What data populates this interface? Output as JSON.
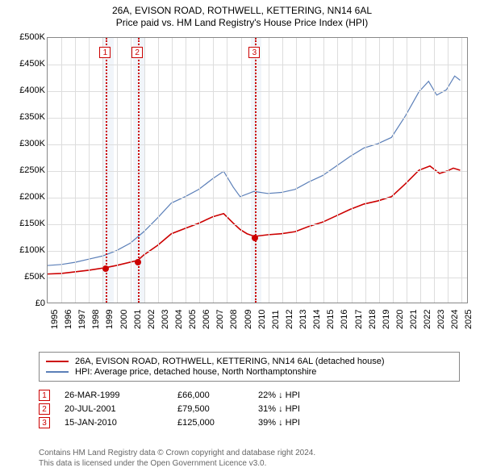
{
  "title_line1": "26A, EVISON ROAD, ROTHWELL, KETTERING, NN14 6AL",
  "title_line2": "Price paid vs. HM Land Registry's House Price Index (HPI)",
  "chart": {
    "type": "line",
    "background_color": "#ffffff",
    "grid_color": "#dddddd",
    "border_color": "#888888",
    "x_min": 1995,
    "x_max": 2025.5,
    "x_ticks": [
      1995,
      1996,
      1997,
      1998,
      1999,
      2000,
      2001,
      2002,
      2003,
      2004,
      2005,
      2006,
      2007,
      2008,
      2009,
      2010,
      2011,
      2012,
      2013,
      2014,
      2015,
      2016,
      2017,
      2018,
      2019,
      2020,
      2021,
      2022,
      2023,
      2024,
      2025
    ],
    "y_min": 0,
    "y_max": 500000,
    "y_tick_step": 50000,
    "y_tick_labels": [
      "£0",
      "£50K",
      "£100K",
      "£150K",
      "£200K",
      "£250K",
      "£300K",
      "£350K",
      "£400K",
      "£450K",
      "£500K"
    ],
    "y_prefix": "£",
    "label_fontsize": 11,
    "shaded_bands": [
      {
        "from": 1999.0,
        "to": 1999.8,
        "color": "#e8eef7"
      },
      {
        "from": 2001.2,
        "to": 2002.0,
        "color": "#e8eef7"
      },
      {
        "from": 2009.7,
        "to": 2010.5,
        "color": "#e8eef7"
      }
    ],
    "markers": [
      {
        "id": "1",
        "x": 1999.23,
        "date": "26-MAR-1999",
        "price": "£66,000",
        "hpi_diff": "22% ↓ HPI",
        "price_val": 66000
      },
      {
        "id": "2",
        "x": 2001.55,
        "date": "20-JUL-2001",
        "price": "£79,500",
        "hpi_diff": "31% ↓ HPI",
        "price_val": 79500
      },
      {
        "id": "3",
        "x": 2010.04,
        "date": "15-JAN-2010",
        "price": "£125,000",
        "hpi_diff": "39% ↓ HPI",
        "price_val": 125000
      }
    ],
    "marker_line_color": "#cc0000",
    "marker_box_border": "#cc0000",
    "marker_box_text_color": "#cc0000",
    "series": [
      {
        "name": "price_paid",
        "label": "26A, EVISON ROAD, ROTHWELL, KETTERING, NN14 6AL (detached house)",
        "color": "#cc0000",
        "line_width": 1.6,
        "data": [
          [
            1995,
            54000
          ],
          [
            1996,
            55000
          ],
          [
            1997,
            58000
          ],
          [
            1998,
            61000
          ],
          [
            1999.23,
            66000
          ],
          [
            2000,
            70000
          ],
          [
            2001.55,
            79500
          ],
          [
            2002,
            90000
          ],
          [
            2003,
            108000
          ],
          [
            2004,
            130000
          ],
          [
            2005,
            140000
          ],
          [
            2006,
            150000
          ],
          [
            2007,
            162000
          ],
          [
            2007.8,
            168000
          ],
          [
            2008.5,
            150000
          ],
          [
            2009,
            138000
          ],
          [
            2009.5,
            130000
          ],
          [
            2010.04,
            125000
          ],
          [
            2011,
            128000
          ],
          [
            2012,
            130000
          ],
          [
            2013,
            134000
          ],
          [
            2014,
            144000
          ],
          [
            2015,
            152000
          ],
          [
            2016,
            164000
          ],
          [
            2017,
            176000
          ],
          [
            2018,
            186000
          ],
          [
            2019,
            192000
          ],
          [
            2020,
            200000
          ],
          [
            2021,
            224000
          ],
          [
            2022,
            250000
          ],
          [
            2022.8,
            258000
          ],
          [
            2023.5,
            244000
          ],
          [
            2024,
            248000
          ],
          [
            2024.5,
            254000
          ],
          [
            2025,
            250000
          ]
        ]
      },
      {
        "name": "hpi",
        "label": "HPI: Average price, detached house, North Northamptonshire",
        "color": "#5b7fb8",
        "line_width": 1.2,
        "data": [
          [
            1995,
            70000
          ],
          [
            1996,
            72000
          ],
          [
            1997,
            76000
          ],
          [
            1998,
            82000
          ],
          [
            1999,
            88000
          ],
          [
            2000,
            98000
          ],
          [
            2001,
            112000
          ],
          [
            2002,
            134000
          ],
          [
            2003,
            160000
          ],
          [
            2004,
            188000
          ],
          [
            2005,
            200000
          ],
          [
            2006,
            214000
          ],
          [
            2007,
            234000
          ],
          [
            2007.8,
            248000
          ],
          [
            2008.5,
            218000
          ],
          [
            2009,
            200000
          ],
          [
            2010,
            210000
          ],
          [
            2011,
            206000
          ],
          [
            2012,
            208000
          ],
          [
            2013,
            214000
          ],
          [
            2014,
            228000
          ],
          [
            2015,
            240000
          ],
          [
            2016,
            258000
          ],
          [
            2017,
            276000
          ],
          [
            2018,
            292000
          ],
          [
            2019,
            300000
          ],
          [
            2020,
            312000
          ],
          [
            2021,
            352000
          ],
          [
            2022,
            398000
          ],
          [
            2022.7,
            418000
          ],
          [
            2023.3,
            392000
          ],
          [
            2024,
            402000
          ],
          [
            2024.6,
            428000
          ],
          [
            2025,
            420000
          ]
        ]
      }
    ]
  },
  "legend": {
    "border_color": "#888888",
    "fontsize": 11
  },
  "footer_line1": "Contains HM Land Registry data © Crown copyright and database right 2024.",
  "footer_line2": "This data is licensed under the Open Government Licence v3.0.",
  "footer_color": "#666666"
}
